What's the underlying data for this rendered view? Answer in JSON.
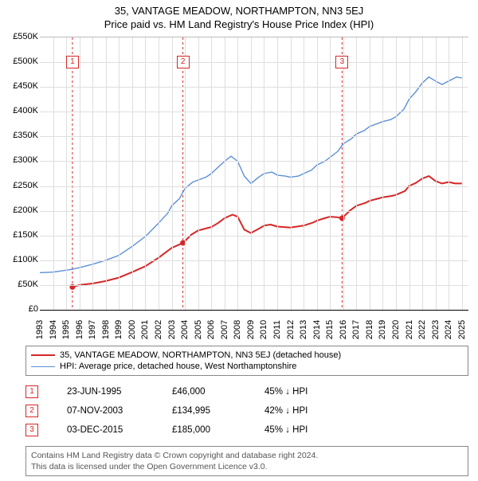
{
  "title": "35, VANTAGE MEADOW, NORTHAMPTON, NN3 5EJ",
  "subtitle": "Price paid vs. HM Land Registry's House Price Index (HPI)",
  "chart": {
    "type": "line",
    "background_color": "#ffffff",
    "grid_color": "#dededf",
    "axis_color": "#000000",
    "label_fontsize": 11,
    "title_fontsize": 13,
    "xlim": [
      1993,
      2025.5
    ],
    "ylim": [
      0,
      550
    ],
    "ytick_step": 50,
    "yticks": [
      0,
      50,
      100,
      150,
      200,
      250,
      300,
      350,
      400,
      450,
      500,
      550
    ],
    "ytick_labels": [
      "£0",
      "£50K",
      "£100K",
      "£150K",
      "£200K",
      "£250K",
      "£300K",
      "£350K",
      "£400K",
      "£450K",
      "£500K",
      "£550K"
    ],
    "xticks": [
      1993,
      1994,
      1995,
      1996,
      1997,
      1998,
      1999,
      2000,
      2001,
      2002,
      2003,
      2004,
      2005,
      2006,
      2007,
      2008,
      2009,
      2010,
      2011,
      2012,
      2013,
      2014,
      2015,
      2016,
      2017,
      2018,
      2019,
      2020,
      2021,
      2022,
      2023,
      2024,
      2025
    ],
    "series": [
      {
        "name": "property",
        "label": "35, VANTAGE MEADOW, NORTHAMPTON, NN3 5EJ (detached house)",
        "color": "#d62728",
        "line_width": 2,
        "data": [
          [
            1995.47,
            46
          ],
          [
            1996,
            50
          ],
          [
            1997,
            53
          ],
          [
            1998,
            58
          ],
          [
            1999,
            65
          ],
          [
            2000,
            76
          ],
          [
            2001,
            88
          ],
          [
            2002,
            105
          ],
          [
            2003,
            125
          ],
          [
            2003.85,
            135
          ],
          [
            2004.5,
            152
          ],
          [
            2005,
            160
          ],
          [
            2005.7,
            165
          ],
          [
            2006,
            167
          ],
          [
            2006.5,
            175
          ],
          [
            2007,
            185
          ],
          [
            2007.6,
            192
          ],
          [
            2008,
            188
          ],
          [
            2008.5,
            162
          ],
          [
            2009,
            155
          ],
          [
            2009.7,
            165
          ],
          [
            2010,
            170
          ],
          [
            2010.5,
            172
          ],
          [
            2011,
            168
          ],
          [
            2012,
            166
          ],
          [
            2013,
            170
          ],
          [
            2013.7,
            176
          ],
          [
            2014,
            180
          ],
          [
            2014.6,
            185
          ],
          [
            2015,
            188
          ],
          [
            2015.5,
            187
          ],
          [
            2015.92,
            185
          ],
          [
            2016.5,
            200
          ],
          [
            2017,
            210
          ],
          [
            2017.7,
            216
          ],
          [
            2018,
            220
          ],
          [
            2018.7,
            225
          ],
          [
            2019,
            227
          ],
          [
            2019.7,
            230
          ],
          [
            2020,
            232
          ],
          [
            2020.7,
            240
          ],
          [
            2021,
            250
          ],
          [
            2021.5,
            256
          ],
          [
            2022,
            265
          ],
          [
            2022.5,
            270
          ],
          [
            2023,
            260
          ],
          [
            2023.5,
            255
          ],
          [
            2024,
            258
          ],
          [
            2024.5,
            255
          ],
          [
            2025,
            255
          ]
        ]
      },
      {
        "name": "hpi",
        "label": "HPI: Average price, detached house, West Northamptonshire",
        "color": "#5b8fd6",
        "line_width": 1.4,
        "data": [
          [
            1993,
            75
          ],
          [
            1994,
            76
          ],
          [
            1995,
            80
          ],
          [
            1995.5,
            82
          ],
          [
            1996,
            85
          ],
          [
            1997,
            92
          ],
          [
            1998,
            100
          ],
          [
            1999,
            110
          ],
          [
            2000,
            128
          ],
          [
            2001,
            148
          ],
          [
            2002,
            175
          ],
          [
            2002.7,
            195
          ],
          [
            2003,
            210
          ],
          [
            2003.6,
            225
          ],
          [
            2004,
            245
          ],
          [
            2004.6,
            258
          ],
          [
            2005,
            262
          ],
          [
            2005.6,
            268
          ],
          [
            2006,
            275
          ],
          [
            2006.6,
            290
          ],
          [
            2007,
            300
          ],
          [
            2007.5,
            310
          ],
          [
            2008,
            300
          ],
          [
            2008.5,
            270
          ],
          [
            2009,
            255
          ],
          [
            2009.6,
            268
          ],
          [
            2010,
            275
          ],
          [
            2010.6,
            278
          ],
          [
            2011,
            272
          ],
          [
            2011.6,
            270
          ],
          [
            2012,
            268
          ],
          [
            2012.6,
            270
          ],
          [
            2013,
            275
          ],
          [
            2013.6,
            282
          ],
          [
            2014,
            292
          ],
          [
            2014.6,
            300
          ],
          [
            2015,
            308
          ],
          [
            2015.6,
            320
          ],
          [
            2016,
            335
          ],
          [
            2016.6,
            345
          ],
          [
            2017,
            355
          ],
          [
            2017.6,
            362
          ],
          [
            2018,
            370
          ],
          [
            2018.6,
            376
          ],
          [
            2019,
            380
          ],
          [
            2019.6,
            384
          ],
          [
            2020,
            390
          ],
          [
            2020.6,
            405
          ],
          [
            2021,
            425
          ],
          [
            2021.5,
            440
          ],
          [
            2022,
            458
          ],
          [
            2022.5,
            470
          ],
          [
            2023,
            462
          ],
          [
            2023.5,
            455
          ],
          [
            2024,
            462
          ],
          [
            2024.6,
            470
          ],
          [
            2025,
            468
          ]
        ]
      }
    ],
    "markers": [
      {
        "n": "1",
        "x": 1995.47,
        "y": 46,
        "box_y": 500
      },
      {
        "n": "2",
        "x": 2003.85,
        "y": 135,
        "box_y": 500
      },
      {
        "n": "3",
        "x": 2015.92,
        "y": 185,
        "box_y": 500
      }
    ],
    "marker_vline_color": "#d62728",
    "marker_vline_dash": "3,3",
    "marker_dot_color": "#d62728",
    "marker_dot_radius": 3.5
  },
  "legend": {
    "rows": [
      {
        "color": "#d62728",
        "width": 2,
        "label": "35, VANTAGE MEADOW, NORTHAMPTON, NN3 5EJ (detached house)"
      },
      {
        "color": "#5b8fd6",
        "width": 1.5,
        "label": "HPI: Average price, detached house, West Northamptonshire"
      }
    ]
  },
  "transactions": [
    {
      "n": "1",
      "date": "23-JUN-1995",
      "price": "£46,000",
      "hpi": "45% ↓ HPI"
    },
    {
      "n": "2",
      "date": "07-NOV-2003",
      "price": "£134,995",
      "hpi": "42% ↓ HPI"
    },
    {
      "n": "3",
      "date": "03-DEC-2015",
      "price": "£185,000",
      "hpi": "45% ↓ HPI"
    }
  ],
  "footer_line1": "Contains HM Land Registry data © Crown copyright and database right 2024.",
  "footer_line2": "This data is licensed under the Open Government Licence v3.0."
}
